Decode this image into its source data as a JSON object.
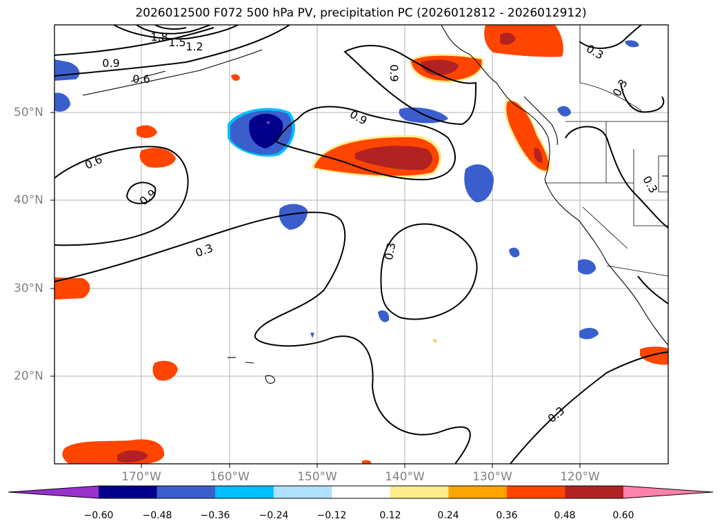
{
  "title": "2026012500 F072 500 hPa PV, precipitation PC (2026012812 - 2026012912)",
  "lat_labels": [
    "50°N",
    "40°N",
    "30°N",
    "20°N"
  ],
  "lon_labels": [
    "170°W",
    "160°W",
    "150°W",
    "140°W",
    "130°W",
    "120°W"
  ],
  "contour_labels": [
    "1.8",
    "1.5",
    "1.2",
    "0.9",
    "0.6",
    "0.9",
    "0.9",
    "0.6",
    "0.9",
    "0.3",
    "0.3",
    "0.3",
    "0.3",
    "0.3",
    "0.3"
  ],
  "colorbar": {
    "ticks": [
      "−0.60",
      "−0.48",
      "−0.36",
      "−0.24",
      "−0.12",
      "0.12",
      "0.24",
      "0.36",
      "0.48",
      "0.60"
    ],
    "colors": [
      "#9932cc",
      "#00008b",
      "#3a5fcd",
      "#00bfff",
      "#b0e2ff",
      "#ffffff",
      "#ffec8b",
      "#ffa500",
      "#ff4500",
      "#b22222",
      "#ff82ab"
    ]
  }
}
